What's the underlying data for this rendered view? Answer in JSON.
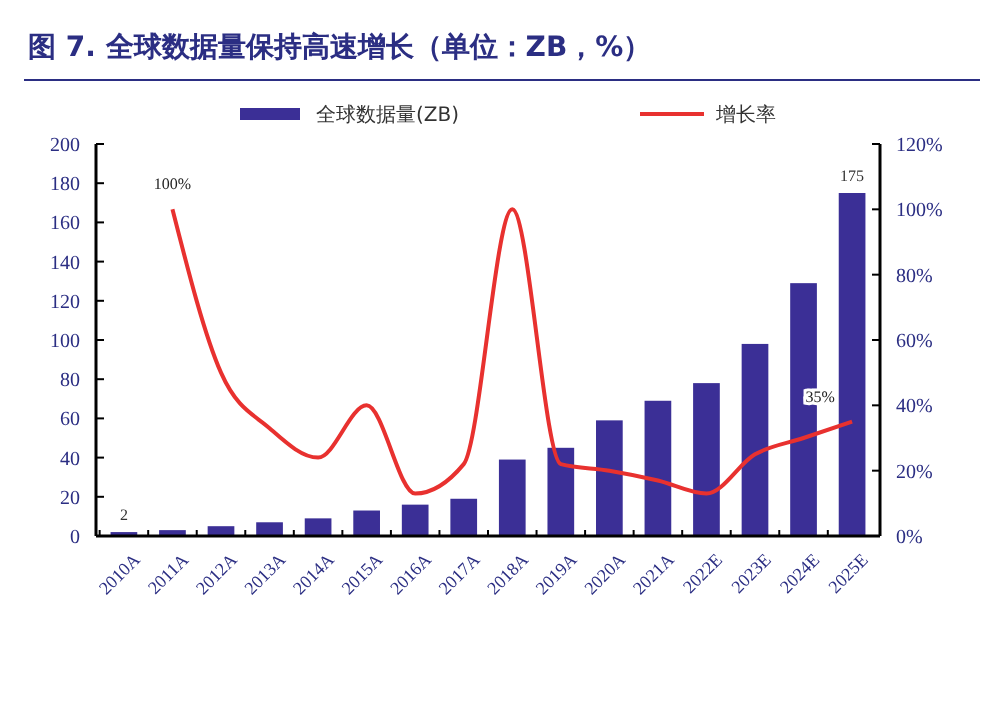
{
  "chart_data": {
    "type": "bar",
    "title": "图 7. 全球数据量保持高速增长（单位：ZB，%）",
    "categories": [
      "2010A",
      "2011A",
      "2012A",
      "2013A",
      "2014A",
      "2015A",
      "2016A",
      "2017A",
      "2018A",
      "2019A",
      "2020A",
      "2021A",
      "2022E",
      "2023E",
      "2024E",
      "2025E"
    ],
    "series": [
      {
        "name": "全球数据量(ZB)",
        "color": "#3b2f96",
        "values": [
          2,
          3,
          5,
          7,
          9,
          13,
          16,
          19,
          39,
          45,
          59,
          69,
          78,
          98,
          129,
          175
        ],
        "value_labels": [
          "2",
          null,
          null,
          null,
          null,
          null,
          null,
          null,
          null,
          null,
          null,
          null,
          null,
          null,
          null,
          "175"
        ]
      },
      {
        "name": "增长率",
        "type": "line",
        "axis": "y2",
        "color": "#e8312f",
        "values": [
          null,
          100,
          50,
          33,
          24,
          40,
          13,
          22,
          100,
          22,
          20,
          17,
          13,
          25,
          30,
          35
        ],
        "value_labels": [
          null,
          "100%",
          null,
          null,
          null,
          null,
          null,
          null,
          null,
          null,
          null,
          null,
          null,
          null,
          null,
          "35%"
        ]
      }
    ],
    "ylim": [
      0,
      200
    ],
    "yticks": [
      0,
      20,
      40,
      60,
      80,
      100,
      120,
      140,
      160,
      180,
      200
    ],
    "y2lim": [
      0,
      120
    ],
    "y2ticks": [
      {
        "value": 0,
        "label": "0%"
      },
      {
        "value": 20,
        "label": "20%"
      },
      {
        "value": 40,
        "label": "40%"
      },
      {
        "value": 60,
        "label": "60%"
      },
      {
        "value": 80,
        "label": "80%"
      },
      {
        "value": 100,
        "label": "100%"
      },
      {
        "value": 120,
        "label": "120%"
      }
    ],
    "legend": "top",
    "grid": false
  }
}
